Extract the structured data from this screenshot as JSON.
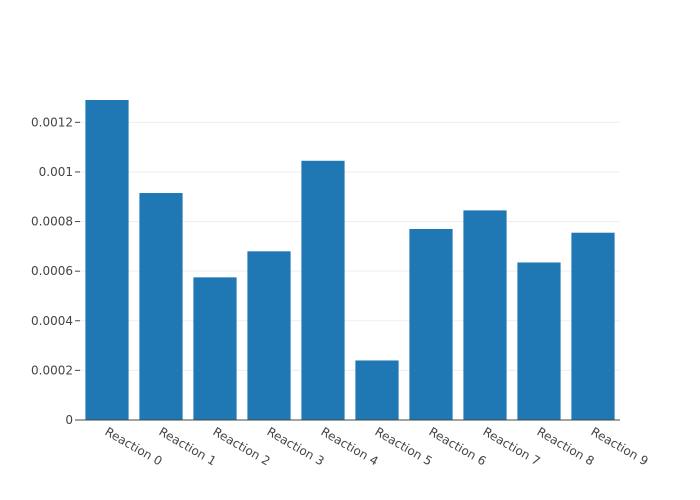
{
  "chart_data": {
    "type": "bar",
    "categories": [
      "Reaction 0",
      "Reaction 1",
      "Reaction 2",
      "Reaction 3",
      "Reaction 4",
      "Reaction 5",
      "Reaction 6",
      "Reaction 7",
      "Reaction 8",
      "Reaction 9"
    ],
    "values": [
      0.00129,
      0.000915,
      0.000575,
      0.00068,
      0.001045,
      0.00024,
      0.00077,
      0.000845,
      0.000635,
      0.000755
    ],
    "title": "",
    "xlabel": "",
    "ylabel": "",
    "ylim": [
      0,
      0.00129
    ],
    "yticks": [
      0,
      0.0002,
      0.0004,
      0.0006,
      0.0008,
      0.001,
      0.0012
    ],
    "ytick_labels": [
      "0",
      "0.0002",
      "0.0004",
      "0.0006",
      "0.0008",
      "0.001",
      "0.0012"
    ],
    "grid": true,
    "legend": "none",
    "bar_color": "#1f77b4",
    "grid_color": "#eeeeee",
    "axis_color": "#444444"
  }
}
